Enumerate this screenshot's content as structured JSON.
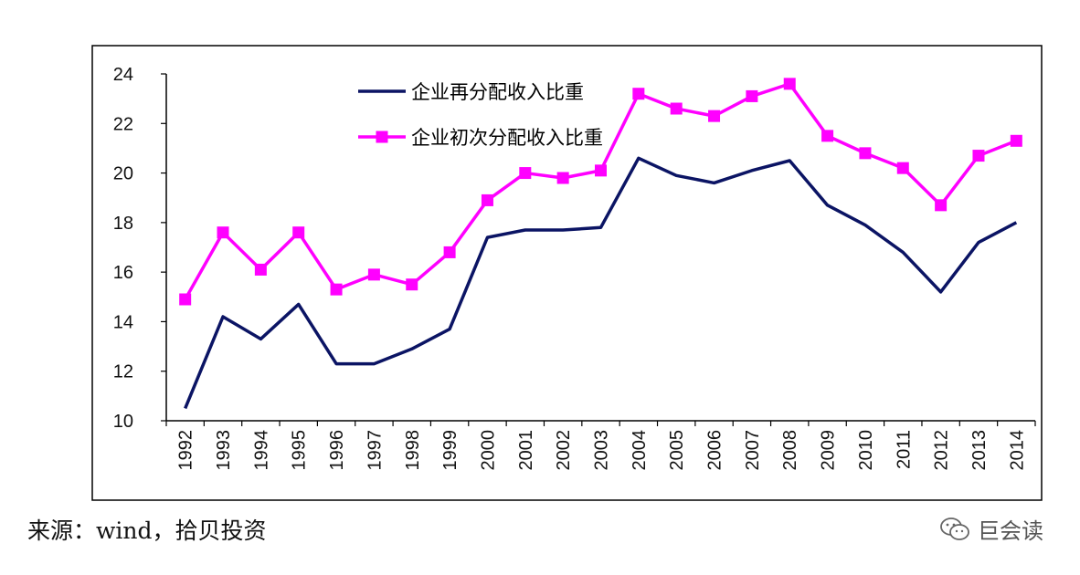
{
  "chart_data": {
    "type": "line",
    "categories": [
      "1992",
      "1993",
      "1994",
      "1995",
      "1996",
      "1997",
      "1998",
      "1999",
      "2000",
      "2001",
      "2002",
      "2003",
      "2004",
      "2005",
      "2006",
      "2007",
      "2008",
      "2009",
      "2010",
      "2011",
      "2012",
      "2013",
      "2014"
    ],
    "series": [
      {
        "name": "企业再分配收入比重",
        "color": "#0b1464",
        "marker": "none",
        "values": [
          10.5,
          14.2,
          13.3,
          14.7,
          12.3,
          12.3,
          12.9,
          13.7,
          17.4,
          17.7,
          17.7,
          17.8,
          20.6,
          19.9,
          19.6,
          20.1,
          20.5,
          18.7,
          17.9,
          16.8,
          15.2,
          17.2,
          18.0
        ]
      },
      {
        "name": "企业初次分配收入比重",
        "color": "#ff00ff",
        "marker": "square",
        "values": [
          14.9,
          17.6,
          16.1,
          17.6,
          15.3,
          15.9,
          15.5,
          16.8,
          18.9,
          20.0,
          19.8,
          20.1,
          23.2,
          22.6,
          22.3,
          23.1,
          23.6,
          21.5,
          20.8,
          20.2,
          18.7,
          20.7,
          21.3
        ]
      }
    ],
    "yticks": [
      10,
      12,
      14,
      16,
      18,
      20,
      22,
      24
    ],
    "ylim": [
      10,
      24
    ],
    "grid": false,
    "legend_position": "top-center"
  },
  "footer": {
    "source": "来源：wind，拾贝投资",
    "watermark": "巨会读",
    "watermark_icon": "wechat-icon"
  }
}
